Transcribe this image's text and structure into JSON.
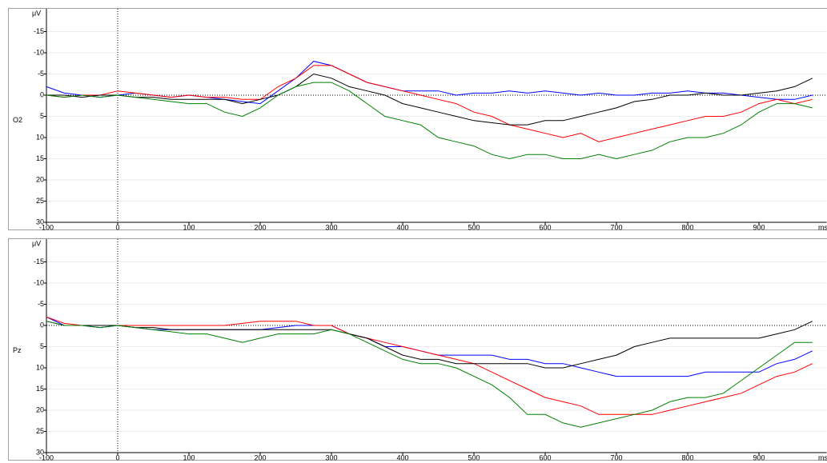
{
  "chart_data": [
    {
      "type": "line",
      "ylabel": "O2",
      "yunit": "μV",
      "xunit": "ms",
      "inverted_y": true,
      "grid": true,
      "x": [
        -100,
        -75,
        -50,
        -25,
        0,
        25,
        50,
        75,
        100,
        125,
        150,
        175,
        200,
        225,
        250,
        275,
        300,
        325,
        350,
        375,
        400,
        425,
        450,
        475,
        500,
        525,
        550,
        575,
        600,
        625,
        650,
        675,
        700,
        725,
        750,
        775,
        800,
        825,
        850,
        875,
        900,
        925,
        950,
        975
      ],
      "xlim": [
        -100,
        995
      ],
      "xticks": [
        -100,
        0,
        100,
        200,
        300,
        400,
        500,
        600,
        700,
        800,
        900
      ],
      "ylim": [
        -20,
        30
      ],
      "yticks": [
        -15,
        -10,
        -5,
        0,
        5,
        10,
        15,
        20,
        25,
        30
      ],
      "series": [
        {
          "color": "#0000ff",
          "values": [
            -2,
            -0.5,
            0,
            0.5,
            0,
            -0.5,
            0,
            0.5,
            0,
            0.5,
            1,
            1.5,
            2,
            -1,
            -4,
            -8,
            -7,
            -5,
            -3,
            -2,
            -1,
            -1,
            -1,
            0,
            -0.5,
            -0.5,
            -1,
            -0.5,
            -1,
            -0.5,
            0,
            -0.5,
            0,
            0,
            -0.5,
            -0.5,
            -1,
            -0.5,
            -0.5,
            0,
            0.5,
            1,
            1,
            0
          ]
        },
        {
          "color": "#ff0000",
          "values": [
            0,
            0.5,
            0,
            0,
            -1,
            -0.5,
            0,
            0.5,
            0,
            0.5,
            0.5,
            1,
            1,
            -2,
            -4,
            -7,
            -7,
            -5,
            -3,
            -2,
            -1,
            0,
            1,
            2,
            4,
            5,
            7,
            8,
            9,
            10,
            9,
            11,
            10,
            9,
            8,
            7,
            6,
            5,
            5,
            4,
            2,
            1,
            2,
            1
          ]
        },
        {
          "color": "#000000",
          "values": [
            0,
            0,
            0.5,
            0,
            0,
            0.5,
            0.5,
            1,
            1,
            1,
            1,
            2,
            1,
            0,
            -2,
            -5,
            -4,
            -2,
            -1,
            0,
            2,
            3,
            4,
            5,
            6,
            6.5,
            7,
            7,
            6,
            6,
            5,
            4,
            3,
            1.5,
            1,
            0,
            0,
            -0.5,
            0,
            0,
            -0.5,
            -1,
            -2,
            -4
          ]
        },
        {
          "color": "#008000",
          "values": [
            0,
            0.5,
            0,
            0.5,
            0,
            0.5,
            1,
            1.5,
            2,
            2,
            4,
            5,
            3,
            0,
            -2,
            -3,
            -3,
            -1,
            2,
            5,
            6,
            7,
            10,
            11,
            12,
            14,
            15,
            14,
            14,
            15,
            15,
            14,
            15,
            14,
            13,
            11,
            10,
            10,
            9,
            7,
            4,
            2,
            2,
            3
          ]
        }
      ]
    },
    {
      "type": "line",
      "ylabel": "Pz",
      "yunit": "μV",
      "xunit": "ms",
      "inverted_y": true,
      "grid": true,
      "x": [
        -100,
        -75,
        -50,
        -25,
        0,
        25,
        50,
        75,
        100,
        125,
        150,
        175,
        200,
        225,
        250,
        275,
        300,
        325,
        350,
        375,
        400,
        425,
        450,
        475,
        500,
        525,
        550,
        575,
        600,
        625,
        650,
        675,
        700,
        725,
        750,
        775,
        800,
        825,
        850,
        875,
        900,
        925,
        950,
        975
      ],
      "xlim": [
        -100,
        995
      ],
      "xticks": [
        -100,
        0,
        100,
        200,
        300,
        400,
        500,
        600,
        700,
        800,
        900
      ],
      "ylim": [
        -20,
        30
      ],
      "yticks": [
        -15,
        -10,
        -5,
        0,
        5,
        10,
        15,
        20,
        25,
        30
      ],
      "series": [
        {
          "color": "#0000ff",
          "values": [
            -2,
            0,
            0,
            0.5,
            0,
            0.5,
            1,
            1,
            1,
            1,
            1,
            1,
            1,
            0.5,
            0,
            0,
            0,
            2,
            3,
            5,
            5,
            6,
            7,
            7,
            7,
            7,
            8,
            8,
            9,
            9,
            10,
            11,
            12,
            12,
            12,
            12,
            12,
            11,
            11,
            11,
            11,
            9,
            8,
            6
          ]
        },
        {
          "color": "#ff0000",
          "values": [
            -2,
            -0.5,
            0,
            0,
            0,
            0,
            0,
            0,
            0,
            0,
            0,
            -0.5,
            -1,
            -1,
            -1,
            0,
            0,
            2,
            3,
            4,
            5,
            6,
            7,
            8,
            9,
            11,
            13,
            15,
            17,
            18,
            19,
            21,
            21,
            21,
            21,
            20,
            19,
            18,
            17,
            16,
            14,
            12,
            11,
            9
          ]
        },
        {
          "color": "#000000",
          "values": [
            -1,
            0,
            0,
            0,
            0,
            0.5,
            0.5,
            1,
            1,
            1,
            1,
            1,
            1,
            1,
            1,
            1,
            1,
            2,
            3,
            5,
            7,
            8,
            8,
            9,
            9,
            9,
            9,
            9,
            10,
            10,
            9,
            8,
            7,
            5,
            4,
            3,
            3,
            3,
            3,
            3,
            3,
            2,
            1,
            -1
          ]
        },
        {
          "color": "#008000",
          "values": [
            -1,
            0,
            0,
            0.5,
            0,
            0.5,
            1,
            1.5,
            2,
            2,
            3,
            4,
            3,
            2,
            2,
            2,
            1,
            2,
            4,
            6,
            8,
            9,
            9,
            10,
            12,
            14,
            17,
            21,
            21,
            23,
            24,
            23,
            22,
            21,
            20,
            18,
            17,
            17,
            16,
            13,
            10,
            7,
            4,
            4
          ]
        }
      ]
    }
  ]
}
